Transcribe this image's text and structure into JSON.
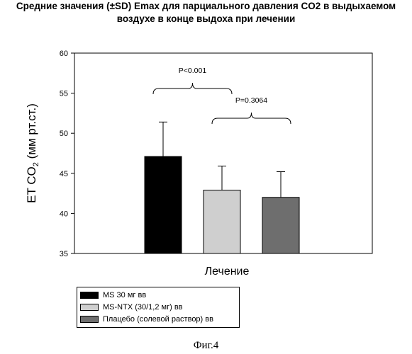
{
  "title_line1": "Средние значения (±SD) Emax для парциального давления CO2 в выдыхаемом",
  "title_line2": "воздухе в конце выдоха при лечении",
  "footer": "Фиг.4",
  "chart_data": {
    "type": "bar",
    "xlabel": "Лечение",
    "ylabel_main": "ET CO",
    "ylabel_sub": "2",
    "ylabel_rest": " (мм рт.ст.)",
    "ylim": [
      35,
      60
    ],
    "yticks": [
      35,
      40,
      45,
      50,
      55,
      60
    ],
    "grid": false,
    "legend_position": "bottom-left",
    "series": [
      {
        "name": "MS 30 мг вв",
        "value": 47.1,
        "sd": 4.3,
        "color": "#000000"
      },
      {
        "name": "MS-NTX  (30/1,2 мг) вв",
        "value": 42.9,
        "sd": 3.0,
        "color": "#cfcfcf"
      },
      {
        "name": "Плацебо (солевой раствор) вв",
        "value": 42.0,
        "sd": 3.2,
        "color": "#6e6e6e"
      }
    ],
    "annotations": [
      {
        "label": "P<0.001",
        "from": 0,
        "to": 1
      },
      {
        "label": "P=0.3064",
        "from": 1,
        "to": 2
      }
    ]
  }
}
